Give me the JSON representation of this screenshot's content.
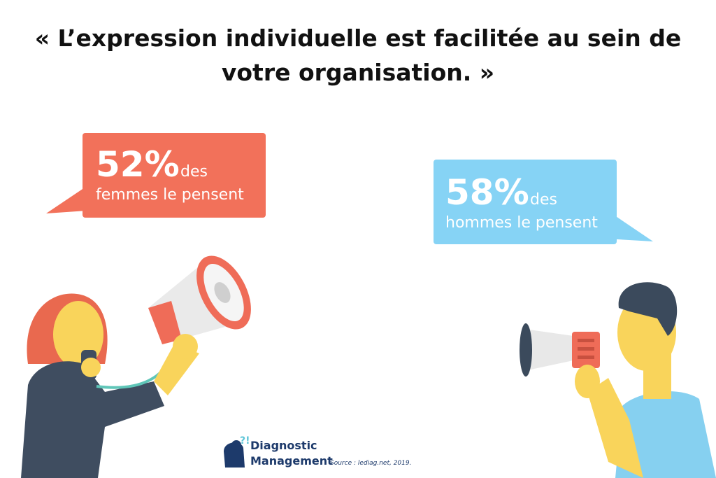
{
  "title": {
    "line1": "« L’expression individuelle est facilitée au sein de",
    "line2": "votre organisation. »"
  },
  "bubbles": [
    {
      "percent": "52%",
      "suffix": "des",
      "line2": "femmes le pensent"
    },
    {
      "percent": "58%",
      "suffix": "des",
      "line2": "hommes le pensent"
    }
  ],
  "logo": {
    "line1": "Diagnostic",
    "line2": "Management"
  },
  "source": "Source : lediag.net, 2019."
}
